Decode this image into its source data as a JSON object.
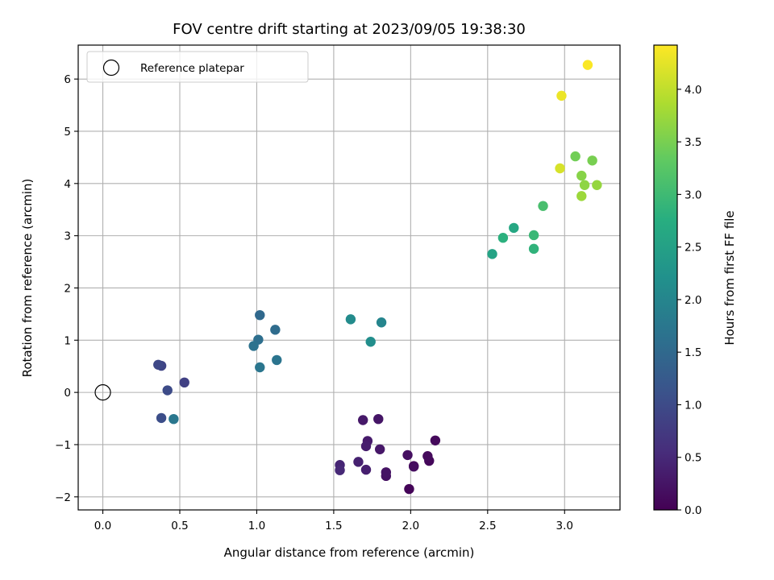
{
  "chart_data": {
    "type": "scatter",
    "title": "FOV centre drift starting at 2023/09/05 19:38:30",
    "xlabel": "Angular distance from reference (arcmin)",
    "ylabel": "Rotation from reference (arcmin)",
    "xlim": [
      -0.16,
      3.36
    ],
    "ylim": [
      -2.25,
      6.65
    ],
    "xticks": [
      "0.0",
      "0.5",
      "1.0",
      "1.5",
      "2.0",
      "2.5",
      "3.0"
    ],
    "xtick_values": [
      0,
      0.5,
      1,
      1.5,
      2,
      2.5,
      3
    ],
    "yticks": [
      "−2",
      "−1",
      "0",
      "1",
      "2",
      "3",
      "4",
      "5",
      "6"
    ],
    "ytick_values": [
      -2,
      -1,
      0,
      1,
      2,
      3,
      4,
      5,
      6
    ],
    "grid": true,
    "legend": {
      "placement": "top-left",
      "entries": [
        "Reference platepar"
      ]
    },
    "reference_point": {
      "x": 0.0,
      "y": 0.0
    },
    "colorbar": {
      "label": "Hours from first FF file",
      "colormap": "viridis",
      "range": [
        0,
        4.42
      ],
      "ticks": [
        "0.0",
        "0.5",
        "1.0",
        "1.5",
        "2.0",
        "2.5",
        "3.0",
        "3.5",
        "4.0"
      ],
      "tick_values": [
        0,
        0.5,
        1,
        1.5,
        2,
        2.5,
        3,
        3.5,
        4
      ]
    },
    "points": [
      {
        "x": 2.02,
        "y": -1.41,
        "hours": 0.0
      },
      {
        "x": 1.99,
        "y": -1.85,
        "hours": 0.05
      },
      {
        "x": 2.12,
        "y": -1.31,
        "hours": 0.08
      },
      {
        "x": 2.16,
        "y": -0.92,
        "hours": 0.1
      },
      {
        "x": 2.11,
        "y": -1.22,
        "hours": 0.12
      },
      {
        "x": 2.02,
        "y": -1.42,
        "hours": 0.15
      },
      {
        "x": 1.98,
        "y": -1.2,
        "hours": 0.18
      },
      {
        "x": 1.84,
        "y": -1.6,
        "hours": 0.2
      },
      {
        "x": 1.84,
        "y": -1.53,
        "hours": 0.22
      },
      {
        "x": 1.79,
        "y": -0.51,
        "hours": 0.25
      },
      {
        "x": 1.8,
        "y": -1.09,
        "hours": 0.28
      },
      {
        "x": 1.69,
        "y": -0.53,
        "hours": 0.3
      },
      {
        "x": 1.72,
        "y": -0.93,
        "hours": 0.32
      },
      {
        "x": 1.71,
        "y": -1.03,
        "hours": 0.35
      },
      {
        "x": 1.71,
        "y": -1.48,
        "hours": 0.38
      },
      {
        "x": 1.66,
        "y": -1.33,
        "hours": 0.4
      },
      {
        "x": 1.54,
        "y": -1.39,
        "hours": 0.45
      },
      {
        "x": 1.54,
        "y": -1.49,
        "hours": 0.5
      },
      {
        "x": 0.53,
        "y": 0.19,
        "hours": 0.85
      },
      {
        "x": 0.38,
        "y": 0.51,
        "hours": 0.9
      },
      {
        "x": 0.36,
        "y": 0.53,
        "hours": 0.95
      },
      {
        "x": 0.42,
        "y": 0.04,
        "hours": 1.0
      },
      {
        "x": 0.38,
        "y": -0.49,
        "hours": 1.05
      },
      {
        "x": 0.46,
        "y": -0.51,
        "hours": 1.75
      },
      {
        "x": 1.02,
        "y": 1.48,
        "hours": 1.5
      },
      {
        "x": 1.12,
        "y": 1.2,
        "hours": 1.55
      },
      {
        "x": 1.01,
        "y": 1.01,
        "hours": 1.6
      },
      {
        "x": 0.98,
        "y": 0.89,
        "hours": 1.65
      },
      {
        "x": 1.13,
        "y": 0.62,
        "hours": 1.7
      },
      {
        "x": 1.02,
        "y": 0.48,
        "hours": 1.72
      },
      {
        "x": 1.81,
        "y": 1.34,
        "hours": 2.0
      },
      {
        "x": 1.61,
        "y": 1.4,
        "hours": 2.1
      },
      {
        "x": 1.74,
        "y": 0.97,
        "hours": 2.15
      },
      {
        "x": 2.53,
        "y": 2.65,
        "hours": 2.55
      },
      {
        "x": 2.67,
        "y": 3.15,
        "hours": 2.62
      },
      {
        "x": 2.6,
        "y": 2.96,
        "hours": 2.8
      },
      {
        "x": 2.8,
        "y": 2.75,
        "hours": 2.85
      },
      {
        "x": 2.8,
        "y": 3.01,
        "hours": 2.95
      },
      {
        "x": 2.86,
        "y": 3.57,
        "hours": 3.1
      },
      {
        "x": 3.07,
        "y": 4.52,
        "hours": 3.45
      },
      {
        "x": 3.18,
        "y": 4.44,
        "hours": 3.5
      },
      {
        "x": 3.11,
        "y": 4.15,
        "hours": 3.6
      },
      {
        "x": 3.13,
        "y": 3.97,
        "hours": 3.65
      },
      {
        "x": 3.21,
        "y": 3.97,
        "hours": 3.7
      },
      {
        "x": 3.11,
        "y": 3.76,
        "hours": 3.75
      },
      {
        "x": 2.97,
        "y": 4.29,
        "hours": 4.15
      },
      {
        "x": 2.98,
        "y": 5.68,
        "hours": 4.3
      },
      {
        "x": 3.15,
        "y": 6.27,
        "hours": 4.4
      }
    ]
  }
}
